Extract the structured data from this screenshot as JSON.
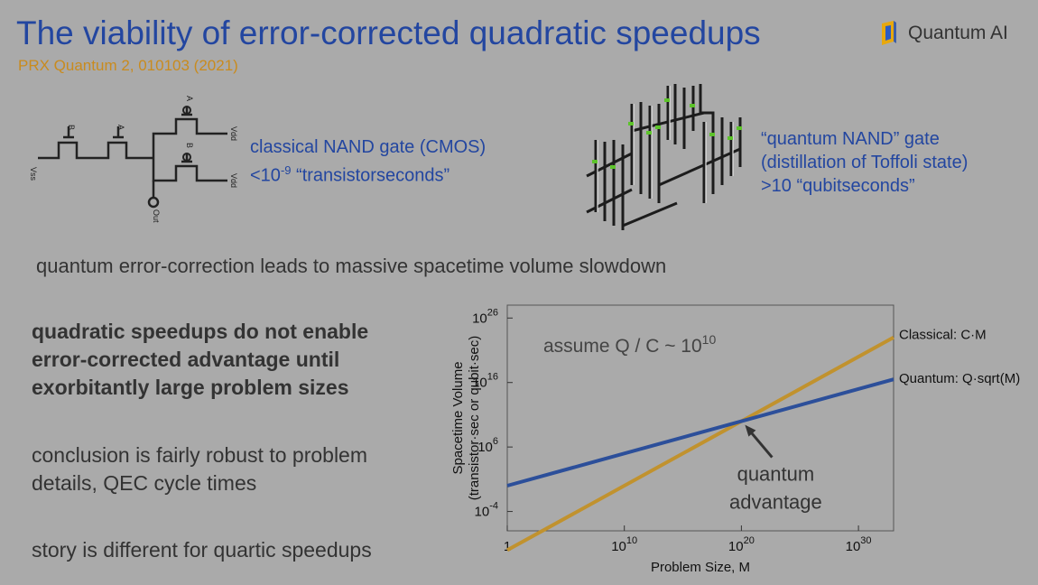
{
  "slide": {
    "title": "The viability of error-corrected quadratic speedups",
    "subtitle": "PRX Quantum 2, 010103 (2021)",
    "brand": "Quantum AI"
  },
  "colors": {
    "title_blue": "#2346a0",
    "accent_orange": "#c98b1e",
    "classical_line": "#c1922e",
    "quantum_line": "#2c4f9a",
    "background": "#aaaaaa"
  },
  "classical_gate": {
    "line1": "classical NAND gate (CMOS)",
    "line2_prefix": "<10",
    "line2_exp": "-9",
    "line2_suffix": " “transistorseconds”",
    "labels": {
      "vss": "Vss",
      "vdd": "Vdd",
      "a": "A",
      "b": "B",
      "out": "Out"
    }
  },
  "quantum_gate": {
    "line1": "“quantum NAND” gate",
    "line2": "(distillation of Toffoli state)",
    "line3": ">10 “qubitseconds”"
  },
  "statement": "quantum error-correction leads to massive spacetime volume slowdown",
  "points": {
    "bold": [
      "quadratic speedups do not enable",
      "error-corrected advantage until",
      "exorbitantly large problem sizes"
    ],
    "robust": [
      "conclusion is fairly robust to problem",
      "details, QEC cycle times"
    ],
    "quartic": "story is different for quartic speedups"
  },
  "chart_data": {
    "type": "line",
    "scale": "log-log",
    "xlabel": "Problem Size, M",
    "ylabel_line1": "Spacetime Volume",
    "ylabel_line2": "(transistor·sec or qubit·sec)",
    "xlim_log10": [
      0,
      33
    ],
    "ylim_log10": [
      -7,
      28
    ],
    "x_ticks": [
      {
        "log10": 0,
        "base": "1",
        "exp": ""
      },
      {
        "log10": 10,
        "base": "10",
        "exp": "10"
      },
      {
        "log10": 20,
        "base": "10",
        "exp": "20"
      },
      {
        "log10": 30,
        "base": "10",
        "exp": "30"
      }
    ],
    "y_ticks": [
      {
        "log10": -4,
        "base": "10",
        "exp": "-4"
      },
      {
        "log10": 6,
        "base": "10",
        "exp": "6"
      },
      {
        "log10": 16,
        "base": "10",
        "exp": "16"
      },
      {
        "log10": 26,
        "base": "10",
        "exp": "26"
      }
    ],
    "annotation": {
      "base": "assume Q / C ~ 10",
      "exp": "10"
    },
    "advantage_label": [
      "quantum",
      "advantage"
    ],
    "advantage_point_log10": [
      20,
      10
    ],
    "series": [
      {
        "name": "Classical: C·M",
        "x_log10": [
          0,
          33
        ],
        "y_log10": [
          -10,
          23
        ],
        "shown_y_offset": [
          -10,
          23
        ]
      },
      {
        "name": "Quantum: Q·sqrt(M)",
        "x_log10": [
          0,
          33
        ],
        "y_log10": [
          0,
          16.5
        ]
      }
    ]
  }
}
